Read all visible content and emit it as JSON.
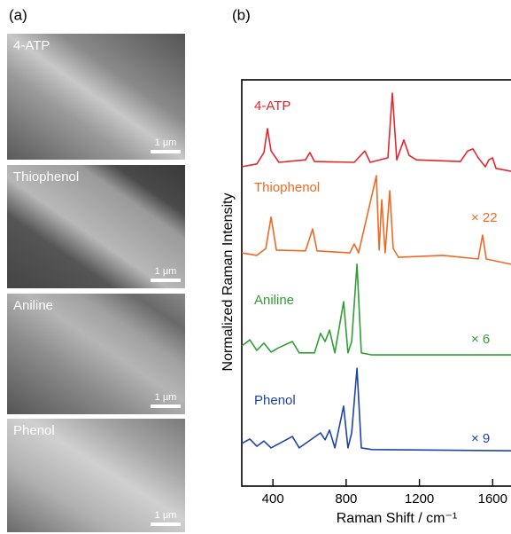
{
  "panel_labels": [
    "(a)",
    "(b)"
  ],
  "sem_images": [
    {
      "label": "4-ATP",
      "scale_bar": "1 µm"
    },
    {
      "label": "Thiophenol",
      "scale_bar": "1 µm"
    },
    {
      "label": "Aniline",
      "scale_bar": "1 µm"
    },
    {
      "label": "Phenol",
      "scale_bar": "1 µm"
    }
  ],
  "chart_data": {
    "type": "line",
    "xlabel": "Raman Shift / cm⁻¹",
    "ylabel": "Normalized Raman Intensity",
    "xlim": [
      230,
      1700
    ],
    "ylim": [
      0,
      100
    ],
    "xticks": [
      400,
      800,
      1200,
      1600
    ],
    "series": [
      {
        "name": "4-ATP",
        "color": "#e3262c",
        "x": [
          230,
          312,
          351,
          370,
          390,
          433,
          578,
          602,
          627,
          844,
          902,
          931,
          1028,
          1052,
          1076,
          1115,
          1144,
          1183,
          1424,
          1463,
          1492,
          1521,
          1560,
          1579,
          1599,
          1618,
          1700
        ],
        "values": [
          78.6,
          79.3,
          82.1,
          88.0,
          82.5,
          79.7,
          80.3,
          82.1,
          79.9,
          79.7,
          82.5,
          79.7,
          80.8,
          96.7,
          80.3,
          85.2,
          81.4,
          80.3,
          79.9,
          82.5,
          83.0,
          80.8,
          78.6,
          80.3,
          80.8,
          78.2,
          77.5
        ]
      },
      {
        "name": "Thiophenol",
        "color": "#ee6a24",
        "scale_label": "× 22",
        "x": [
          230,
          312,
          361,
          390,
          419,
          578,
          617,
          641,
          820,
          844,
          868,
          965,
          980,
          994,
          1013,
          1038,
          1057,
          1086,
          1328,
          1521,
          1545,
          1565,
          1700
        ],
        "values": [
          57.4,
          56.8,
          58.5,
          66.2,
          58.1,
          57.9,
          63.3,
          57.9,
          57.4,
          59.6,
          57.4,
          76.4,
          58.1,
          70.5,
          57.4,
          72.7,
          58.5,
          56.3,
          56.8,
          55.9,
          61.8,
          55.9,
          54.6
        ]
      },
      {
        "name": "Aniline",
        "color": "#2f9e35",
        "scale_label": "× 6",
        "x": [
          230,
          274,
          312,
          351,
          390,
          433,
          506,
          544,
          627,
          660,
          685,
          709,
          738,
          786,
          810,
          830,
          859,
          883,
          941,
          1700
        ],
        "values": [
          34.5,
          36.0,
          33.4,
          35.2,
          33.0,
          34.1,
          35.6,
          32.8,
          32.8,
          37.6,
          35.6,
          38.4,
          32.8,
          45.4,
          32.8,
          35.6,
          54.6,
          32.8,
          32.3,
          32.3
        ]
      },
      {
        "name": "Phenol",
        "color": "#1f44a3",
        "scale_label": "× 9",
        "x": [
          230,
          274,
          312,
          351,
          390,
          506,
          544,
          660,
          685,
          709,
          738,
          786,
          810,
          830,
          859,
          883,
          941,
          1700
        ],
        "values": [
          10.5,
          11.6,
          9.8,
          11.1,
          9.4,
          12.2,
          9.4,
          13.1,
          11.4,
          13.8,
          9.4,
          19.7,
          9.4,
          13.1,
          29.0,
          9.4,
          9.0,
          8.7
        ]
      }
    ]
  }
}
